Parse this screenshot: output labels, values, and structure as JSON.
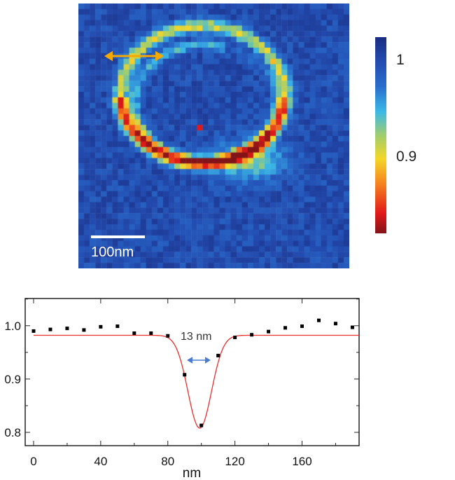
{
  "image_panel": {
    "scale_bar_label": "100nm",
    "arrow_color": "#f5a800",
    "colormap": "jet",
    "colorbar": {
      "max": 1.026,
      "min": 0.82,
      "ticks": [
        {
          "value": 1.0,
          "label": "1"
        },
        {
          "value": 0.9,
          "label": "0.9"
        }
      ]
    }
  },
  "chart_data": {
    "type": "scatter",
    "xlabel": "nm",
    "ylabel": "",
    "xlim": [
      -5,
      194
    ],
    "ylim": [
      0.775,
      1.051
    ],
    "xticks": [
      0,
      40,
      80,
      120,
      160
    ],
    "yticks": [
      0.8,
      0.9,
      1.0
    ],
    "ytick_labels": [
      "0.8",
      "0.9",
      "1.0"
    ],
    "grid": false,
    "series": [
      {
        "kind": "points",
        "color": "#000000",
        "x": [
          0,
          10,
          20,
          30,
          40,
          50,
          60,
          70,
          80,
          90,
          100,
          110,
          120,
          130,
          140,
          150,
          160,
          170,
          180,
          190
        ],
        "y": [
          0.99,
          0.993,
          0.995,
          0.992,
          0.998,
          0.999,
          0.986,
          0.986,
          0.981,
          0.908,
          0.813,
          0.944,
          0.978,
          0.983,
          0.989,
          0.996,
          0.999,
          1.01,
          1.004,
          0.997
        ]
      },
      {
        "kind": "gaussian-fit",
        "color": "#e8302c",
        "baseline": 0.982,
        "minimum": 0.808,
        "center": 99,
        "sigma": 7
      }
    ],
    "annotation": {
      "text": "13 nm",
      "arrow_color": "#4a7bd0"
    }
  }
}
